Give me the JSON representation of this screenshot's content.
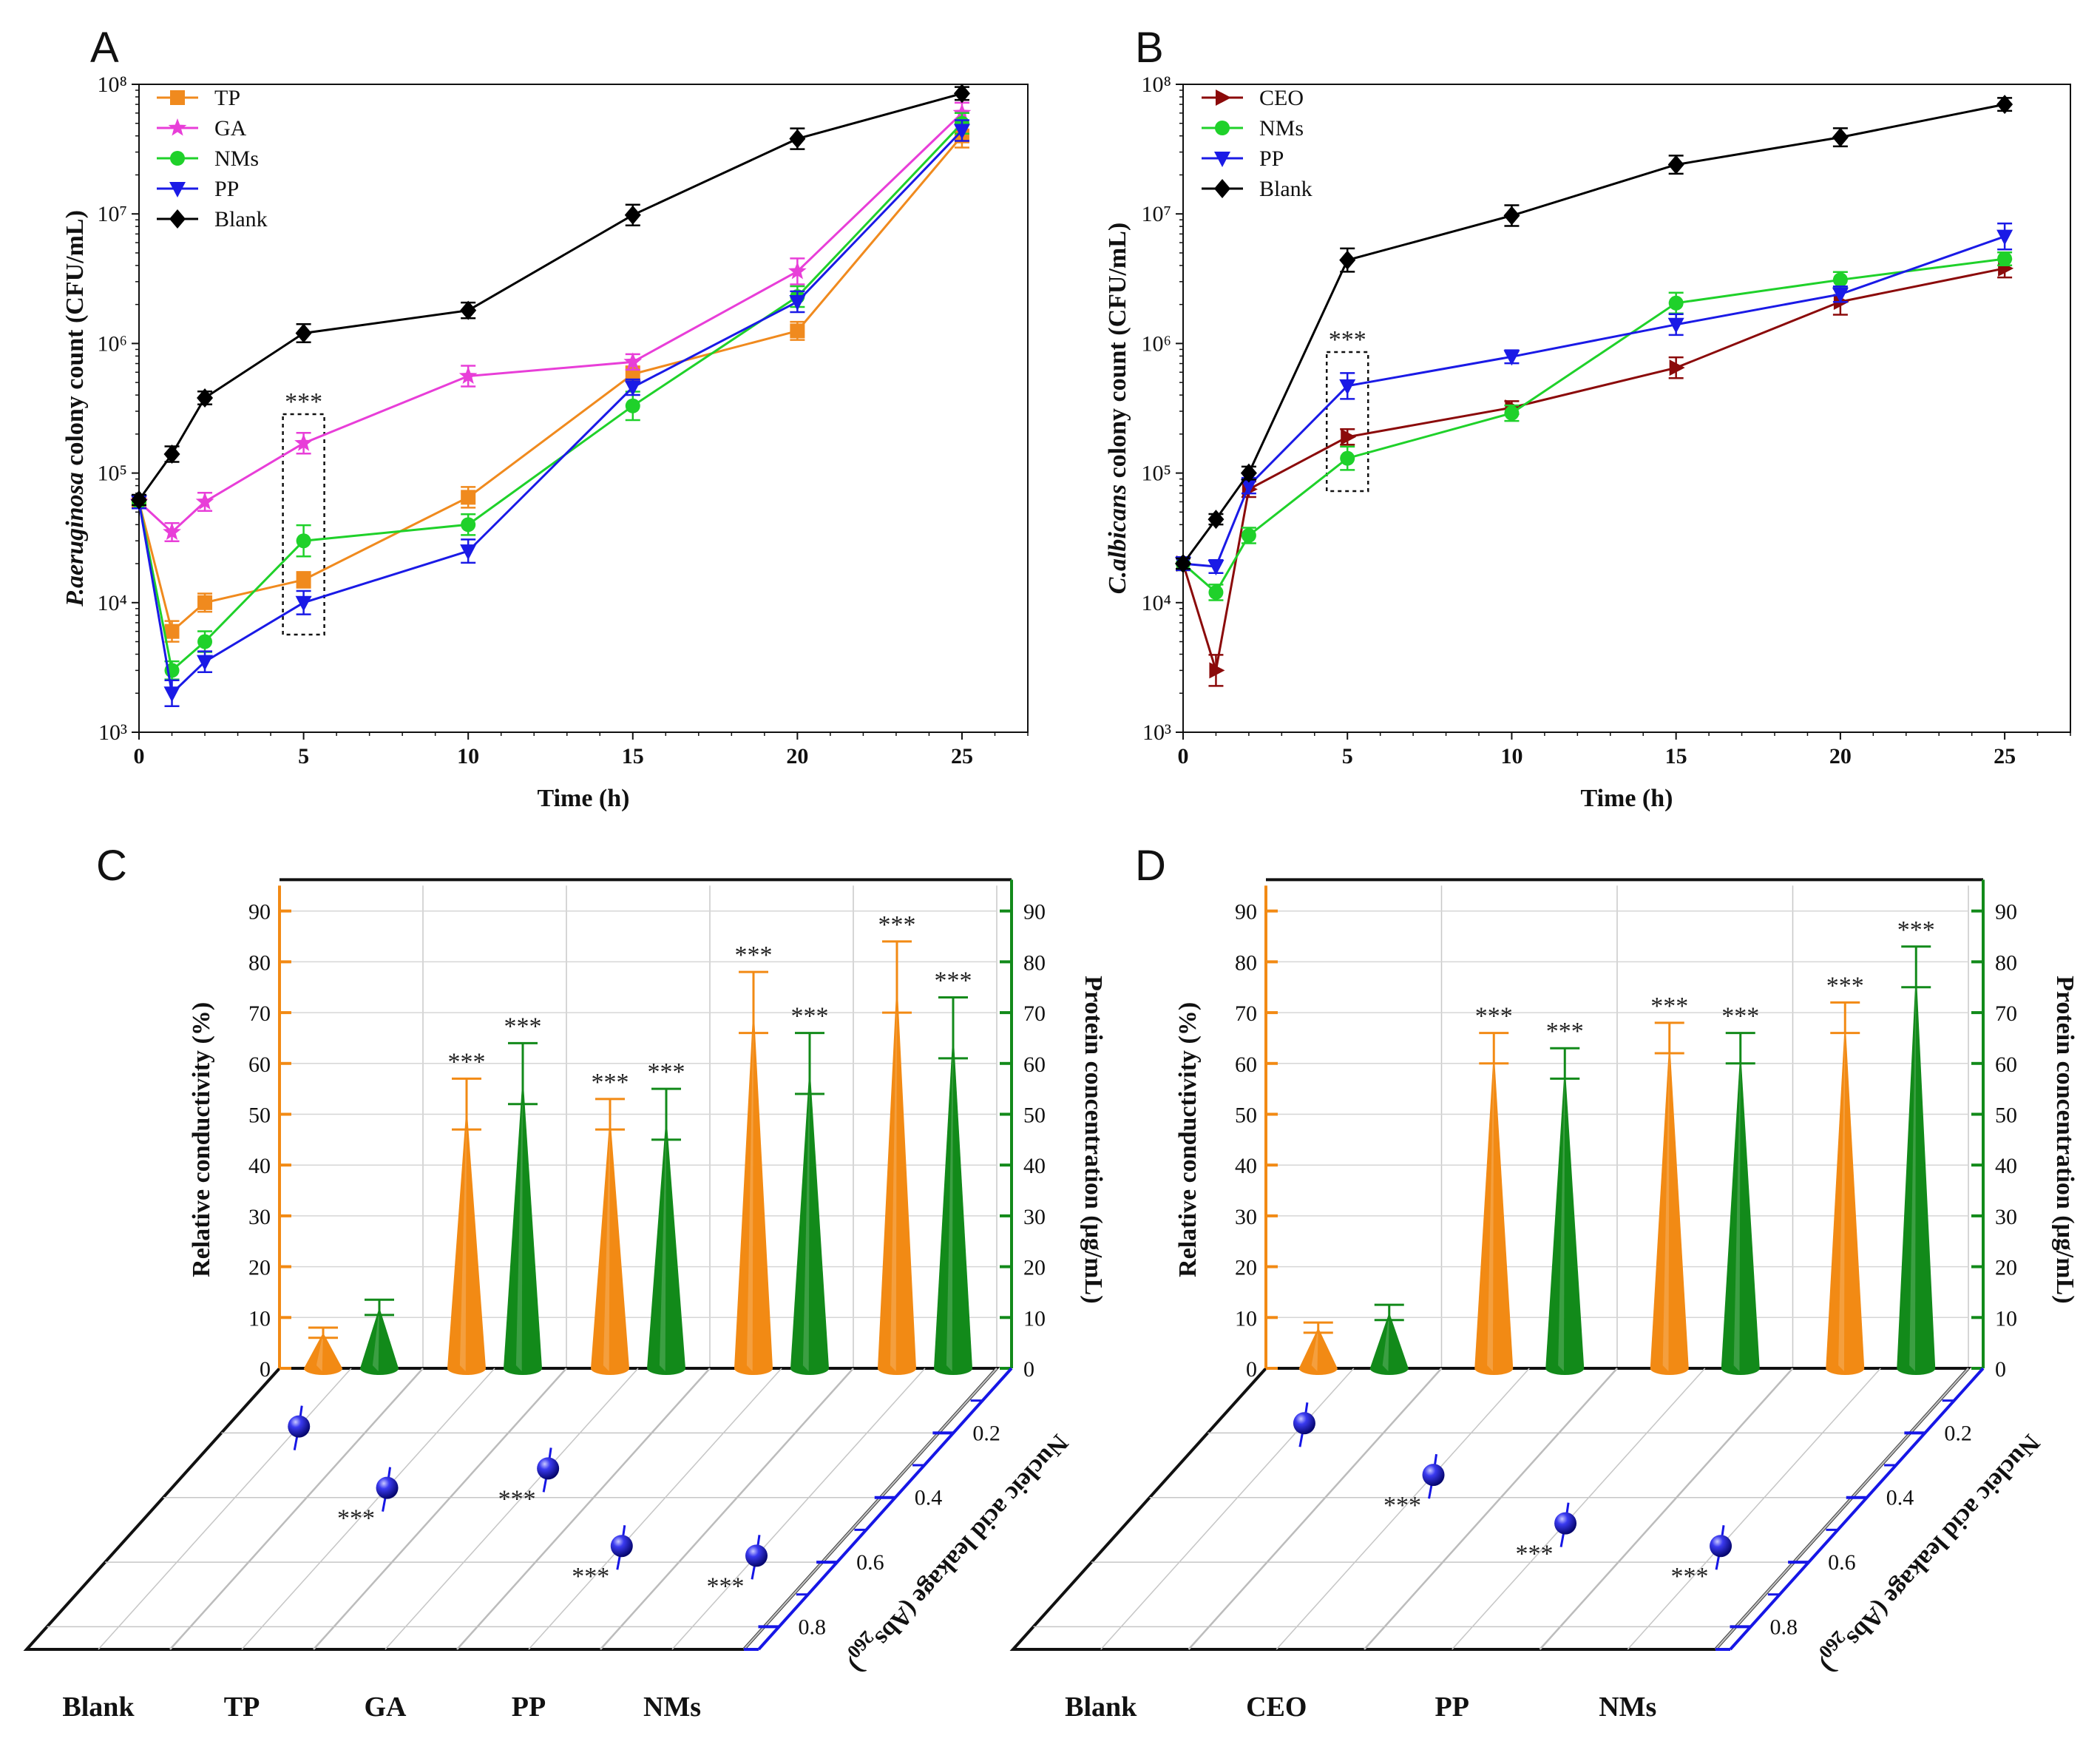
{
  "colors": {
    "TP": "#f08a1e",
    "GA": "#e83ed8",
    "NMs": "#1fd12a",
    "PP": "#1a1ae6",
    "Blank": "#000000",
    "CEO": "#8b0a0a",
    "orange": "#f28a14",
    "green": "#128a1a",
    "blue": "#1616e6"
  },
  "chart_data": [
    {
      "panel": "A",
      "type": "line",
      "xlabel": "Time (h)",
      "ylabel_italic": "P.aeruginosa",
      "ylabel_rest": " colony count (CFU/mL)",
      "yscale": "log",
      "xlim": [
        0,
        27
      ],
      "ylim_exp": [
        3,
        8
      ],
      "xticks": [
        0,
        5,
        10,
        15,
        20,
        25
      ],
      "yticks": [
        "10³",
        "10⁴",
        "10⁵",
        "10⁶",
        "10⁷",
        "10⁸"
      ],
      "annotation": "***",
      "annotation_x": 5,
      "series": [
        {
          "name": "TP",
          "marker": "square",
          "x": [
            0,
            1,
            2,
            5,
            10,
            15,
            20,
            25
          ],
          "y": [
            60000,
            6000,
            10000,
            15000,
            65000,
            580000,
            1250000,
            40000000
          ],
          "err": [
            0.05,
            0.08,
            0.07,
            0.06,
            0.08,
            0.06,
            0.07,
            0.09
          ]
        },
        {
          "name": "GA",
          "marker": "star",
          "x": [
            0,
            1,
            2,
            5,
            10,
            15,
            20,
            25
          ],
          "y": [
            60000,
            35000,
            60000,
            170000,
            560000,
            720000,
            3600000,
            60000000
          ],
          "err": [
            0.05,
            0.07,
            0.07,
            0.08,
            0.08,
            0.06,
            0.1,
            0.08
          ]
        },
        {
          "name": "NMs",
          "marker": "circle",
          "x": [
            0,
            1,
            2,
            5,
            10,
            15,
            20,
            25
          ],
          "y": [
            60000,
            3000,
            5000,
            30000,
            40000,
            330000,
            2300000,
            50000000
          ],
          "err": [
            0.05,
            0.07,
            0.08,
            0.12,
            0.08,
            0.11,
            0.08,
            0.08
          ]
        },
        {
          "name": "PP",
          "marker": "triangle-down",
          "x": [
            0,
            1,
            2,
            5,
            10,
            15,
            20,
            25
          ],
          "y": [
            60000,
            2000,
            3500,
            10000,
            25000,
            460000,
            2100000,
            44000000
          ],
          "err": [
            0.05,
            0.1,
            0.08,
            0.09,
            0.09,
            0.06,
            0.08,
            0.08
          ]
        },
        {
          "name": "Blank",
          "marker": "diamond",
          "x": [
            0,
            1,
            2,
            5,
            10,
            15,
            20,
            25
          ],
          "y": [
            62000,
            140000,
            380000,
            1200000,
            1800000,
            9800000,
            38000000,
            85000000
          ],
          "err": [
            0.04,
            0.06,
            0.05,
            0.07,
            0.06,
            0.08,
            0.08,
            0.05
          ]
        }
      ]
    },
    {
      "panel": "B",
      "type": "line",
      "xlabel": "Time (h)",
      "ylabel_italic": "C.albicans",
      "ylabel_rest": " colony count (CFU/mL)",
      "yscale": "log",
      "xlim": [
        0,
        27
      ],
      "ylim_exp": [
        3,
        8
      ],
      "xticks": [
        0,
        5,
        10,
        15,
        20,
        25
      ],
      "yticks": [
        "10³",
        "10⁴",
        "10⁵",
        "10⁶",
        "10⁷",
        "10⁸"
      ],
      "annotation": "***",
      "annotation_x": 5,
      "series": [
        {
          "name": "CEO",
          "marker": "triangle-right",
          "x": [
            0,
            1,
            2,
            5,
            10,
            15,
            20,
            25
          ],
          "y": [
            20000,
            3000,
            75000,
            190000,
            320000,
            650000,
            2100000,
            3800000
          ],
          "err": [
            0.05,
            0.12,
            0.06,
            0.06,
            0.05,
            0.08,
            0.1,
            0.07
          ]
        },
        {
          "name": "NMs",
          "marker": "circle",
          "x": [
            0,
            1,
            2,
            5,
            10,
            15,
            20,
            25
          ],
          "y": [
            20000,
            12000,
            33000,
            130000,
            290000,
            2050000,
            3100000,
            4500000
          ],
          "err": [
            0.05,
            0.06,
            0.06,
            0.09,
            0.06,
            0.08,
            0.06,
            0.05
          ]
        },
        {
          "name": "PP",
          "marker": "triangle-down",
          "x": [
            0,
            1,
            2,
            5,
            10,
            15,
            20,
            25
          ],
          "y": [
            20000,
            19000,
            80000,
            470000,
            790000,
            1400000,
            2400000,
            6700000
          ],
          "err": [
            0.05,
            0.05,
            0.06,
            0.1,
            0.05,
            0.08,
            0.06,
            0.1
          ]
        },
        {
          "name": "Blank",
          "marker": "diamond",
          "x": [
            0,
            1,
            2,
            5,
            10,
            15,
            20,
            25
          ],
          "y": [
            20000,
            44000,
            100000,
            4400000,
            9700000,
            24000000,
            39000000,
            70000000
          ],
          "err": [
            0.04,
            0.04,
            0.05,
            0.09,
            0.08,
            0.07,
            0.07,
            0.05
          ]
        }
      ]
    },
    {
      "panel": "C",
      "type": "3d-cone-bar",
      "categories": [
        "Blank",
        "TP",
        "GA",
        "PP",
        "NMs"
      ],
      "left_axis_label": "Relative conductivity (%)",
      "right_axis_label": "Protein concentration (μg/mL)",
      "depth_axis_label": "Nucleic acid leakage (Abs",
      "depth_axis_sub": "260",
      "depth_axis_close": ")",
      "z_ticks": [
        0,
        10,
        20,
        30,
        40,
        50,
        60,
        70,
        80,
        90
      ],
      "depth_ticks": [
        "0.2",
        "0.4",
        "0.6",
        "0.8"
      ],
      "conductivity": [
        7,
        52,
        50,
        72,
        77
      ],
      "conductivity_err": [
        1,
        5,
        3,
        6,
        7
      ],
      "protein": [
        12,
        58,
        50,
        60,
        67
      ],
      "protein_err": [
        1.5,
        6,
        5,
        6,
        6
      ],
      "nucleic_acid": [
        0.18,
        0.37,
        0.31,
        0.55,
        0.58
      ],
      "nucleic_acid_err": [
        0.04,
        0.05,
        0.05,
        0.05,
        0.05
      ],
      "sig": [
        "",
        "***",
        "***",
        "***",
        "***"
      ]
    },
    {
      "panel": "D",
      "type": "3d-cone-bar",
      "categories": [
        "Blank",
        "CEO",
        "PP",
        "NMs"
      ],
      "left_axis_label": "Relative conductivity (%)",
      "right_axis_label": "Protein concentration (μg/mL)",
      "depth_axis_label": "Nucleic acid leakage (Abs",
      "depth_axis_sub": "260",
      "depth_axis_close": ")",
      "z_ticks": [
        0,
        10,
        20,
        30,
        40,
        50,
        60,
        70,
        80,
        90
      ],
      "depth_ticks": [
        "0.2",
        "0.4",
        "0.6",
        "0.8"
      ],
      "conductivity": [
        8,
        63,
        65,
        69
      ],
      "conductivity_err": [
        1,
        3,
        3,
        3
      ],
      "protein": [
        11,
        60,
        63,
        79
      ],
      "protein_err": [
        1.5,
        3,
        3,
        4
      ],
      "nucleic_acid": [
        0.17,
        0.33,
        0.48,
        0.55
      ],
      "nucleic_acid_err": [
        0.04,
        0.04,
        0.05,
        0.05
      ],
      "sig": [
        "",
        "***",
        "***",
        "***"
      ]
    }
  ]
}
